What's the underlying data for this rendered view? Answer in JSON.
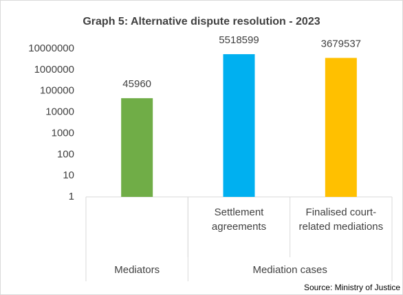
{
  "chart_data": {
    "type": "bar",
    "title": "Graph 5: Alternative dispute resolution - 2023",
    "categories": [
      null,
      "Settlement agreements",
      "Finalised court-related mediations"
    ],
    "groups": [
      {
        "name": "Mediators",
        "size": 1
      },
      {
        "name": "Mediation cases",
        "size": 2
      }
    ],
    "values": [
      45960,
      5518599,
      3679537
    ],
    "colors": [
      "#70ad47",
      "#00b0f0",
      "#ffc000"
    ],
    "log_scale": true,
    "grid": false,
    "ylim": [
      1,
      10000000
    ],
    "yticks": [
      1,
      10,
      100,
      1000,
      10000,
      100000,
      1000000,
      10000000
    ],
    "source": "Source: Ministry of Justice"
  }
}
